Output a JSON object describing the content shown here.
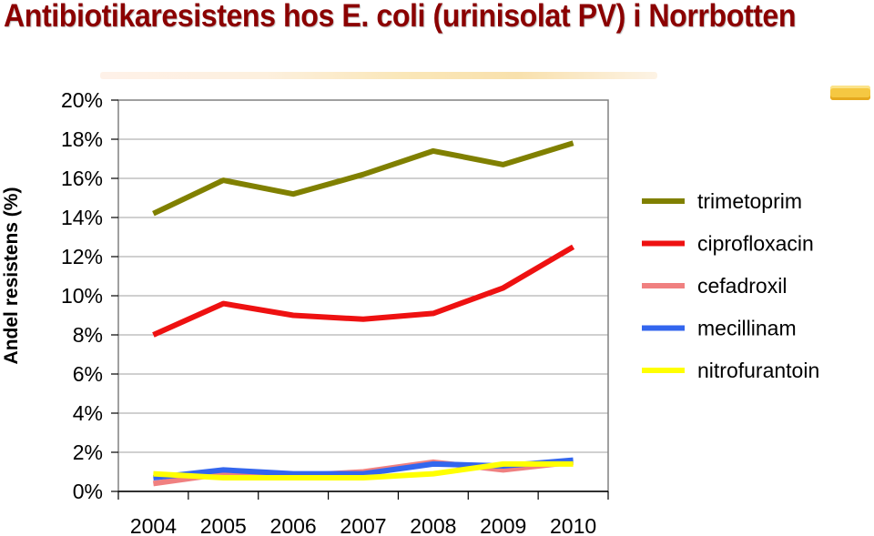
{
  "title": "Antibiotikaresistens hos E. coli (urinisolat PV) i Norrbotten",
  "chart_data": {
    "type": "line",
    "title": "",
    "xlabel": "",
    "ylabel": "Andel resistens (%)",
    "x": [
      "2004",
      "2005",
      "2006",
      "2007",
      "2008",
      "2009",
      "2010"
    ],
    "ylim": [
      0,
      20
    ],
    "yticks": [
      "0%",
      "2%",
      "4%",
      "6%",
      "8%",
      "10%",
      "12%",
      "14%",
      "16%",
      "18%",
      "20%"
    ],
    "grid": true,
    "legend_position": "right",
    "series": [
      {
        "name": "trimetoprim",
        "color": "#808000",
        "values": [
          14.2,
          15.9,
          15.2,
          16.2,
          17.4,
          16.7,
          17.8
        ]
      },
      {
        "name": "ciprofloxacin",
        "color": "#ee1111",
        "values": [
          8.0,
          9.6,
          9.0,
          8.8,
          9.1,
          10.4,
          12.5
        ]
      },
      {
        "name": "cefadroxil",
        "color": "#f08080",
        "values": [
          0.4,
          0.9,
          0.8,
          1.0,
          1.5,
          1.1,
          1.5
        ]
      },
      {
        "name": "mecillinam",
        "color": "#3366ee",
        "values": [
          0.7,
          1.1,
          0.9,
          0.9,
          1.4,
          1.3,
          1.6
        ]
      },
      {
        "name": "nitrofurantoin",
        "color": "#ffff00",
        "values": [
          0.9,
          0.7,
          0.7,
          0.7,
          0.9,
          1.4,
          1.4
        ]
      }
    ]
  }
}
